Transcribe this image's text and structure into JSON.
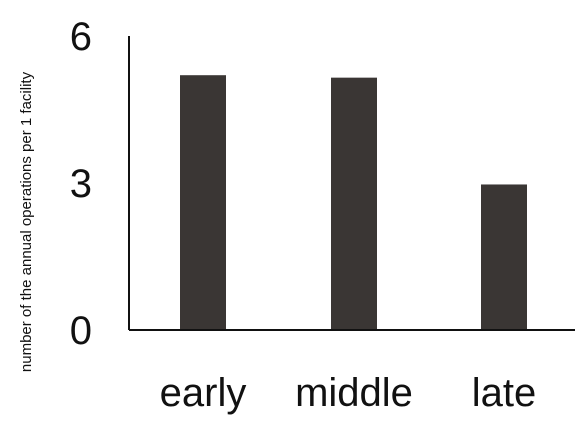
{
  "chart_data": {
    "type": "bar",
    "title": "",
    "xlabel": "",
    "ylabel": "number of the annual operations per 1 facility",
    "categories": [
      "early",
      "middle",
      "late"
    ],
    "values": [
      5.2,
      5.15,
      2.97
    ],
    "ylim": [
      0,
      6
    ],
    "yticks": [
      0,
      3,
      6
    ],
    "grid": false,
    "legend": "none",
    "colors": {
      "bar": "#3a3634",
      "axis": "#111111"
    }
  }
}
